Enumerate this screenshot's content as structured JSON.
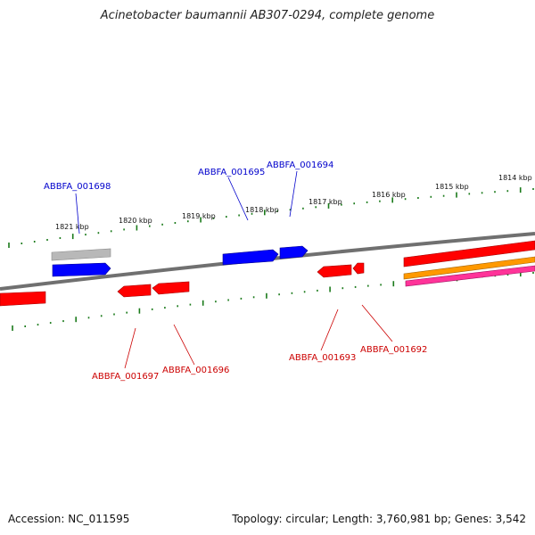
{
  "title": "Acinetobacter baumannii AB307-0294, complete genome",
  "footer": {
    "accession": "Accession: NC_011595",
    "summary": "Topology: circular; Length: 3,760,981 bp; Genes: 3,542"
  },
  "colors": {
    "backbone": "#808080",
    "tick": "#1a7a1a",
    "forward_gene": "#0000ff",
    "reverse_gene": "#ff0000",
    "gray_feature": "#b8b8b8",
    "orange_feature": "#ff9900",
    "pink_feature": "#ff3399",
    "forward_label": "#0000cc",
    "reverse_label": "#cc0000"
  },
  "kbp_labels": [
    "1821 kbp",
    "1820 kbp",
    "1819 kbp",
    "1818 kbp",
    "1817 kbp",
    "1816 kbp",
    "1815 kbp",
    "1814 kbp"
  ],
  "gene_labels": {
    "forward": [
      "ABBFA_001698",
      "ABBFA_001695",
      "ABBFA_001694"
    ],
    "reverse": [
      "ABBFA_001697",
      "ABBFA_001696",
      "ABBFA_001693",
      "ABBFA_001692"
    ]
  }
}
